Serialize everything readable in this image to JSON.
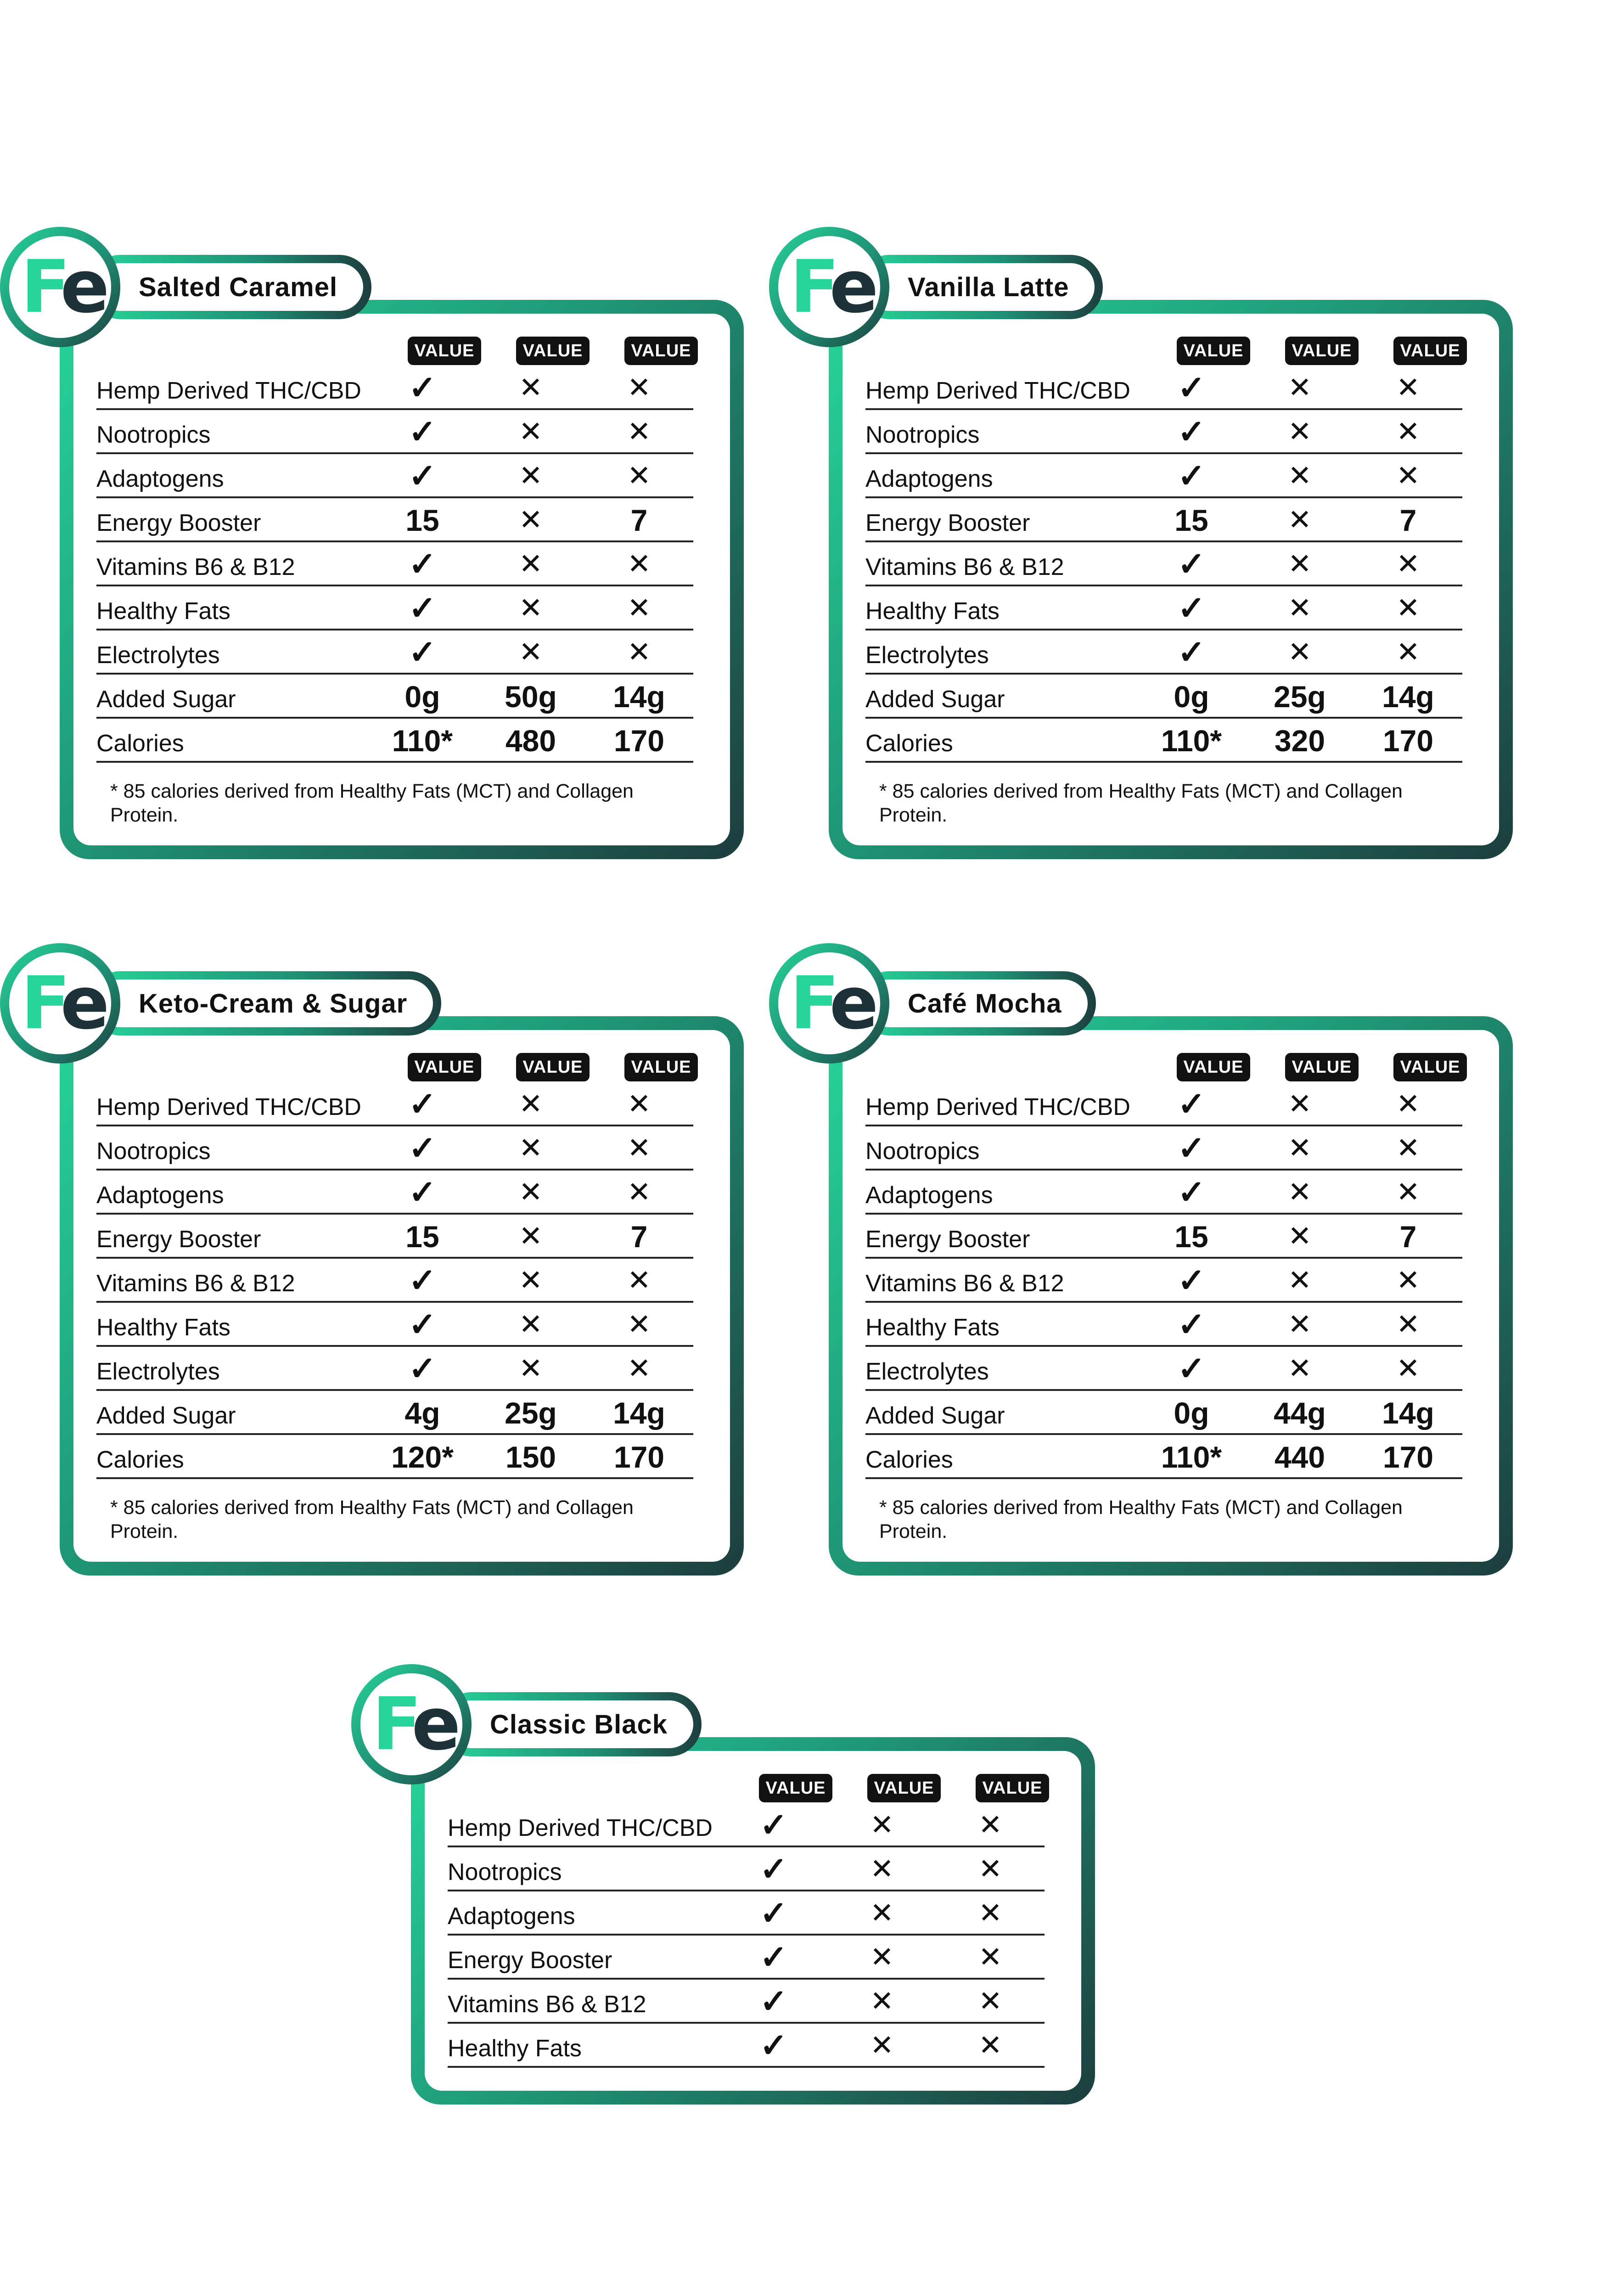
{
  "brand": {
    "logo_letters": "Fe",
    "accent": "#27d59a",
    "dark": "#1d3d3f"
  },
  "column_header": "VALUE",
  "cards": [
    {
      "title": "Salted Caramel",
      "rows": [
        {
          "label": "Hemp Derived THC/CBD",
          "cells": [
            "✓",
            "✕",
            "✕"
          ]
        },
        {
          "label": "Nootropics",
          "cells": [
            "✓",
            "✕",
            "✕"
          ]
        },
        {
          "label": "Adaptogens",
          "cells": [
            "✓",
            "✕",
            "✕"
          ]
        },
        {
          "label": "Energy Booster",
          "cells": [
            "15",
            "✕",
            "7"
          ]
        },
        {
          "label": "Vitamins B6 & B12",
          "cells": [
            "✓",
            "✕",
            "✕"
          ]
        },
        {
          "label": "Healthy Fats",
          "cells": [
            "✓",
            "✕",
            "✕"
          ]
        },
        {
          "label": "Electrolytes",
          "cells": [
            "✓",
            "✕",
            "✕"
          ]
        },
        {
          "label": "Added Sugar",
          "cells": [
            "0g",
            "50g",
            "14g"
          ]
        },
        {
          "label": "Calories",
          "cells": [
            "110*",
            "480",
            "170"
          ]
        }
      ],
      "note": "* 85 calories derived from Healthy Fats (MCT) and Collagen Protein."
    },
    {
      "title": "Vanilla Latte",
      "rows": [
        {
          "label": "Hemp Derived THC/CBD",
          "cells": [
            "✓",
            "✕",
            "✕"
          ]
        },
        {
          "label": "Nootropics",
          "cells": [
            "✓",
            "✕",
            "✕"
          ]
        },
        {
          "label": "Adaptogens",
          "cells": [
            "✓",
            "✕",
            "✕"
          ]
        },
        {
          "label": "Energy Booster",
          "cells": [
            "15",
            "✕",
            "7"
          ]
        },
        {
          "label": "Vitamins B6 & B12",
          "cells": [
            "✓",
            "✕",
            "✕"
          ]
        },
        {
          "label": "Healthy Fats",
          "cells": [
            "✓",
            "✕",
            "✕"
          ]
        },
        {
          "label": "Electrolytes",
          "cells": [
            "✓",
            "✕",
            "✕"
          ]
        },
        {
          "label": "Added Sugar",
          "cells": [
            "0g",
            "25g",
            "14g"
          ]
        },
        {
          "label": "Calories",
          "cells": [
            "110*",
            "320",
            "170"
          ]
        }
      ],
      "note": "* 85 calories derived from Healthy Fats (MCT) and Collagen Protein."
    },
    {
      "title": "Keto-Cream & Sugar",
      "rows": [
        {
          "label": "Hemp Derived THC/CBD",
          "cells": [
            "✓",
            "✕",
            "✕"
          ]
        },
        {
          "label": "Nootropics",
          "cells": [
            "✓",
            "✕",
            "✕"
          ]
        },
        {
          "label": "Adaptogens",
          "cells": [
            "✓",
            "✕",
            "✕"
          ]
        },
        {
          "label": "Energy Booster",
          "cells": [
            "15",
            "✕",
            "7"
          ]
        },
        {
          "label": "Vitamins B6 & B12",
          "cells": [
            "✓",
            "✕",
            "✕"
          ]
        },
        {
          "label": "Healthy Fats",
          "cells": [
            "✓",
            "✕",
            "✕"
          ]
        },
        {
          "label": "Electrolytes",
          "cells": [
            "✓",
            "✕",
            "✕"
          ]
        },
        {
          "label": "Added Sugar",
          "cells": [
            "4g",
            "25g",
            "14g"
          ]
        },
        {
          "label": "Calories",
          "cells": [
            "120*",
            "150",
            "170"
          ]
        }
      ],
      "note": "* 85 calories derived from Healthy Fats (MCT) and Collagen Protein."
    },
    {
      "title": "Café Mocha",
      "rows": [
        {
          "label": "Hemp Derived THC/CBD",
          "cells": [
            "✓",
            "✕",
            "✕"
          ]
        },
        {
          "label": "Nootropics",
          "cells": [
            "✓",
            "✕",
            "✕"
          ]
        },
        {
          "label": "Adaptogens",
          "cells": [
            "✓",
            "✕",
            "✕"
          ]
        },
        {
          "label": "Energy Booster",
          "cells": [
            "15",
            "✕",
            "7"
          ]
        },
        {
          "label": "Vitamins B6 & B12",
          "cells": [
            "✓",
            "✕",
            "✕"
          ]
        },
        {
          "label": "Healthy Fats",
          "cells": [
            "✓",
            "✕",
            "✕"
          ]
        },
        {
          "label": "Electrolytes",
          "cells": [
            "✓",
            "✕",
            "✕"
          ]
        },
        {
          "label": "Added Sugar",
          "cells": [
            "0g",
            "44g",
            "14g"
          ]
        },
        {
          "label": "Calories",
          "cells": [
            "110*",
            "440",
            "170"
          ]
        }
      ],
      "note": "* 85 calories derived from Healthy Fats (MCT) and Collagen Protein."
    },
    {
      "title": "Classic Black",
      "rows": [
        {
          "label": "Hemp Derived THC/CBD",
          "cells": [
            "✓",
            "✕",
            "✕"
          ]
        },
        {
          "label": "Nootropics",
          "cells": [
            "✓",
            "✕",
            "✕"
          ]
        },
        {
          "label": "Adaptogens",
          "cells": [
            "✓",
            "✕",
            "✕"
          ]
        },
        {
          "label": "Energy Booster",
          "cells": [
            "✓",
            "✕",
            "✕"
          ]
        },
        {
          "label": "Vitamins B6 & B12",
          "cells": [
            "✓",
            "✕",
            "✕"
          ]
        },
        {
          "label": "Healthy Fats",
          "cells": [
            "✓",
            "✕",
            "✕"
          ]
        }
      ],
      "note": ""
    }
  ]
}
